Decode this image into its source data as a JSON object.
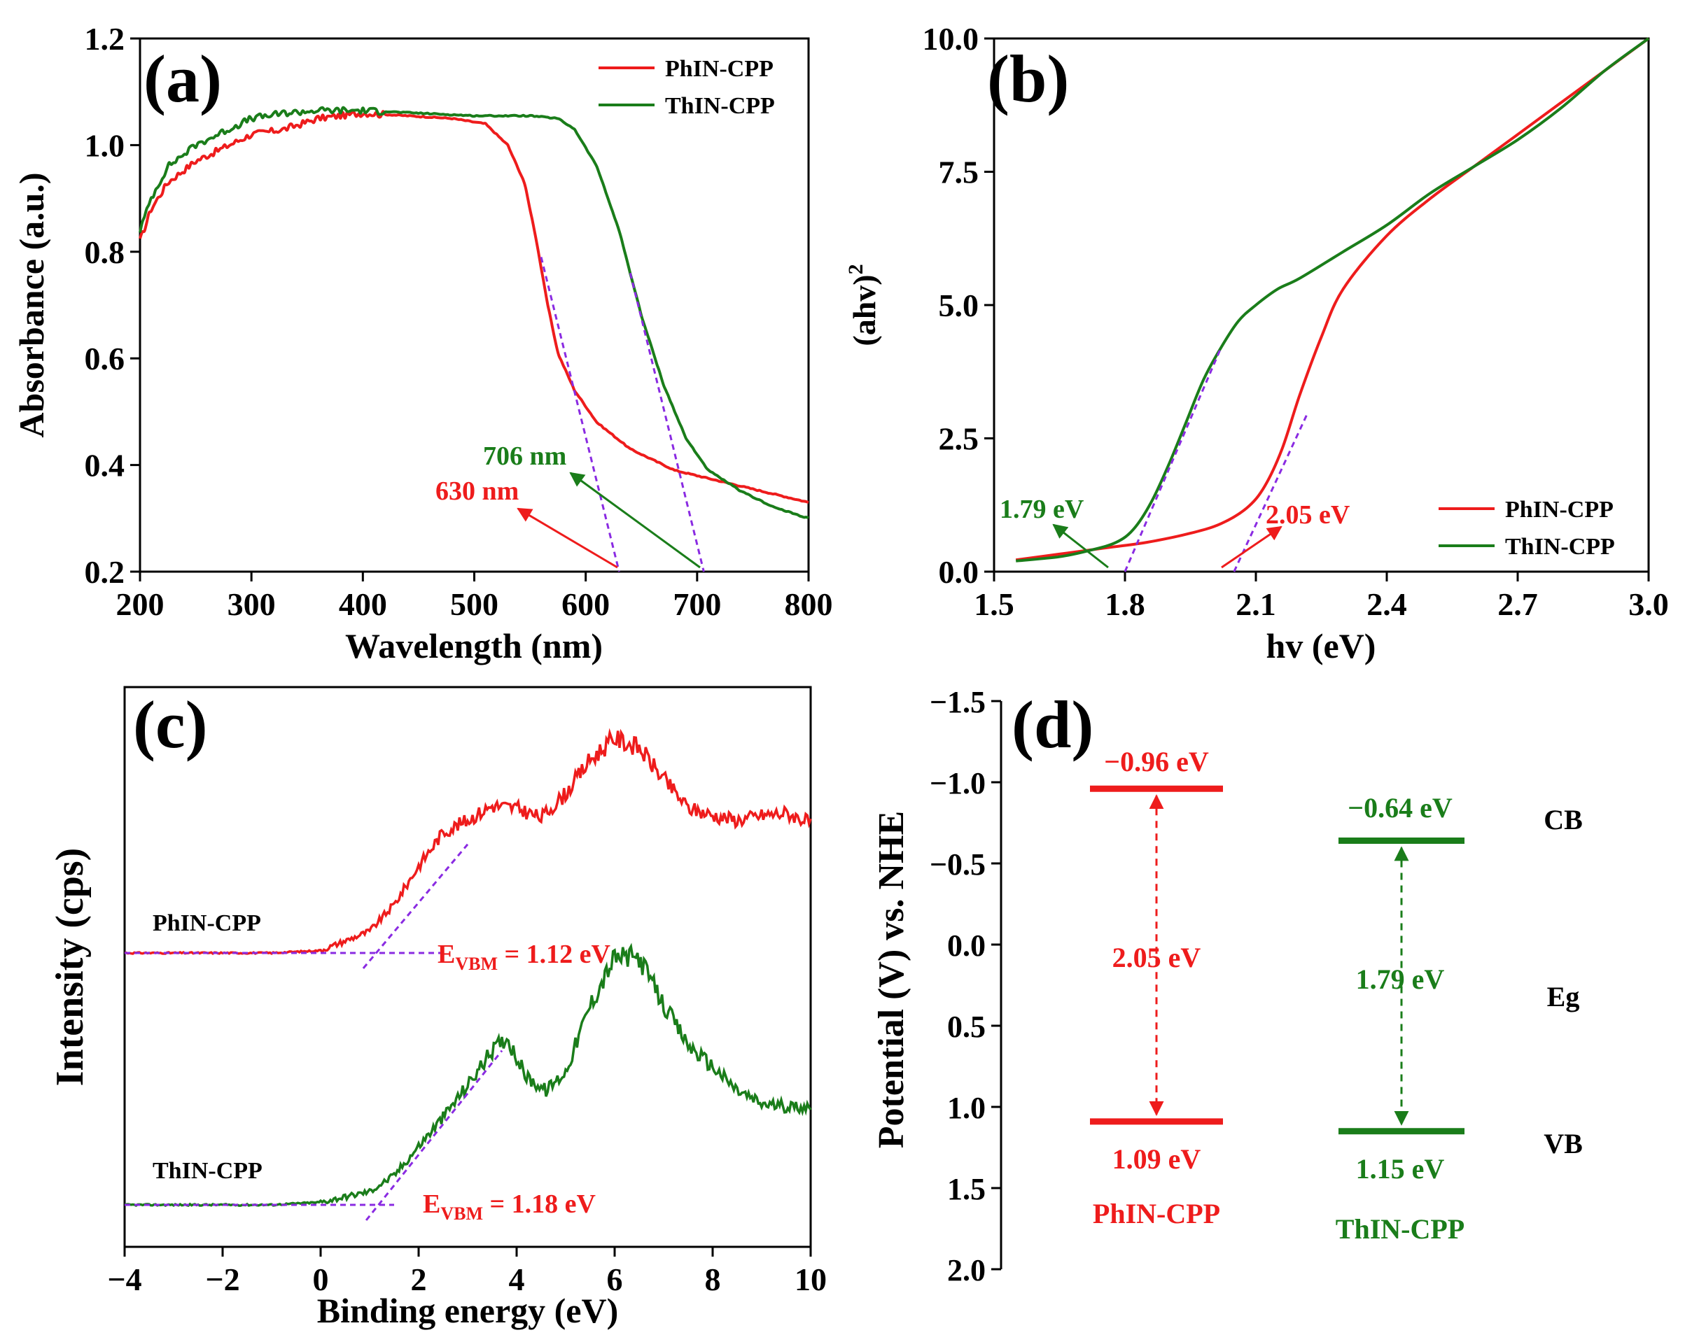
{
  "colors": {
    "phin": "#ee1c1c",
    "thin": "#1a7d1a",
    "fit": "#8a2be2",
    "axis": "#000000"
  },
  "panels": {
    "a": {
      "letter": "(a)",
      "xlabel": "Wavelength (nm)",
      "ylabel": "Absorbance (a.u.)",
      "xlim": [
        200,
        800
      ],
      "ylim": [
        0.2,
        1.2
      ],
      "xticks": [
        "200",
        "300",
        "400",
        "500",
        "600",
        "700",
        "800"
      ],
      "yticks": [
        "0.2",
        "0.4",
        "0.6",
        "0.8",
        "1.0",
        "1.2"
      ],
      "legend": [
        "PhIN-CPP",
        "ThIN-CPP"
      ],
      "annotations": {
        "phin": "630 nm",
        "thin": "706 nm"
      }
    },
    "b": {
      "letter": "(b)",
      "xlabel": "hv (eV)",
      "ylabel": "(ahv)",
      "ylabel_sup": "2",
      "xlim": [
        1.5,
        3.0
      ],
      "ylim": [
        0,
        10
      ],
      "xticks": [
        "1.5",
        "1.8",
        "2.1",
        "2.4",
        "2.7",
        "3.0"
      ],
      "yticks": [
        "0.0",
        "2.5",
        "5.0",
        "7.5",
        "10.0"
      ],
      "legend": [
        "PhIN-CPP",
        "ThIN-CPP"
      ],
      "annotations": {
        "phin": "2.05 eV",
        "thin": "1.79 eV"
      }
    },
    "c": {
      "letter": "(c)",
      "xlabel": "Binding energy (eV)",
      "ylabel": "Intensity (cps)",
      "xlim": [
        -4,
        10
      ],
      "xticks": [
        "−4",
        "−2",
        "0",
        "2",
        "4",
        "6",
        "8",
        "10"
      ],
      "labels": {
        "phin": "PhIN-CPP",
        "thin": "ThIN-CPP"
      },
      "evbm": {
        "prefix": "E",
        "sub": "VBM",
        "phin": " = 1.12 eV",
        "thin": " = 1.18 eV"
      }
    },
    "d": {
      "letter": "(d)",
      "ylabel": "Potential (V) vs. NHE",
      "yticks": [
        "−1.5",
        "−1.0",
        "−0.5",
        "0.0",
        "0.5",
        "1.0",
        "1.5",
        "2.0"
      ],
      "phin": {
        "cb": "−0.96 eV",
        "vb": "1.09 eV",
        "eg": "2.05 eV",
        "name": "PhIN-CPP"
      },
      "thin": {
        "cb": "−0.64 eV",
        "vb": "1.15 eV",
        "eg": "1.79 eV",
        "name": "ThIN-CPP"
      },
      "side_labels": {
        "cb": "CB",
        "eg": "Eg",
        "vb": "VB"
      }
    }
  },
  "chart_data": [
    {
      "type": "line",
      "title": "(a)",
      "xlabel": "Wavelength (nm)",
      "ylabel": "Absorbance (a.u.)",
      "xlim": [
        200,
        800
      ],
      "ylim": [
        0.2,
        1.2
      ],
      "series": [
        {
          "name": "PhIN-CPP",
          "x": [
            200,
            210,
            225,
            250,
            280,
            300,
            330,
            360,
            400,
            440,
            480,
            510,
            530,
            545,
            555,
            565,
            575,
            590,
            610,
            640,
            680,
            720,
            760,
            800
          ],
          "y": [
            0.82,
            0.88,
            0.93,
            0.97,
            1.0,
            1.02,
            1.03,
            1.05,
            1.06,
            1.055,
            1.05,
            1.04,
            1.0,
            0.93,
            0.83,
            0.71,
            0.61,
            0.54,
            0.48,
            0.43,
            0.39,
            0.37,
            0.35,
            0.33
          ]
        },
        {
          "name": "ThIN-CPP",
          "x": [
            200,
            210,
            225,
            250,
            280,
            300,
            330,
            360,
            400,
            450,
            500,
            550,
            575,
            590,
            610,
            630,
            650,
            670,
            690,
            710,
            740,
            770,
            800
          ],
          "y": [
            0.84,
            0.9,
            0.96,
            1.0,
            1.03,
            1.05,
            1.06,
            1.065,
            1.065,
            1.06,
            1.055,
            1.055,
            1.05,
            1.03,
            0.96,
            0.84,
            0.68,
            0.55,
            0.45,
            0.39,
            0.35,
            0.32,
            0.3
          ]
        }
      ],
      "tangents": [
        {
          "name": "PhIN-CPP",
          "x": [
            560,
            630
          ],
          "y": [
            0.79,
            0.2
          ],
          "intercept": 630
        },
        {
          "name": "ThIN-CPP",
          "x": [
            640,
            706
          ],
          "y": [
            0.76,
            0.2
          ],
          "intercept": 706
        }
      ]
    },
    {
      "type": "line",
      "title": "(b)",
      "xlabel": "hv (eV)",
      "ylabel": "(ahv)^2",
      "xlim": [
        1.5,
        3.0
      ],
      "ylim": [
        0,
        10
      ],
      "series": [
        {
          "name": "PhIN-CPP",
          "x": [
            1.55,
            1.65,
            1.75,
            1.85,
            1.95,
            2.02,
            2.08,
            2.12,
            2.16,
            2.2,
            2.25,
            2.3,
            2.4,
            2.5,
            2.6,
            2.7,
            2.8,
            2.9,
            3.0
          ],
          "y": [
            0.22,
            0.33,
            0.44,
            0.55,
            0.72,
            0.9,
            1.2,
            1.6,
            2.3,
            3.3,
            4.4,
            5.3,
            6.3,
            7.0,
            7.6,
            8.2,
            8.8,
            9.4,
            10.0
          ]
        },
        {
          "name": "ThIN-CPP",
          "x": [
            1.55,
            1.65,
            1.72,
            1.78,
            1.82,
            1.86,
            1.9,
            1.94,
            1.98,
            2.02,
            2.06,
            2.1,
            2.15,
            2.2,
            2.3,
            2.4,
            2.5,
            2.6,
            2.7,
            2.8,
            2.9,
            3.0
          ],
          "y": [
            0.2,
            0.28,
            0.4,
            0.55,
            0.8,
            1.3,
            2.0,
            2.8,
            3.6,
            4.2,
            4.7,
            5.0,
            5.3,
            5.5,
            6.0,
            6.5,
            7.1,
            7.6,
            8.1,
            8.7,
            9.4,
            10.0
          ]
        }
      ],
      "tangents": [
        {
          "name": "PhIN-CPP",
          "x": [
            2.05,
            2.22
          ],
          "y": [
            0,
            3.0
          ],
          "intercept": 2.05
        },
        {
          "name": "ThIN-CPP",
          "x": [
            1.8,
            2.02
          ],
          "y": [
            0,
            4.2
          ],
          "intercept": 1.79
        }
      ],
      "legend": "bottom-right"
    },
    {
      "type": "line",
      "title": "(c)",
      "xlabel": "Binding energy (eV)",
      "ylabel": "Intensity (cps)",
      "xlim": [
        -4,
        10
      ],
      "series": [
        {
          "name": "PhIN-CPP",
          "x": [
            -4,
            -2,
            -1,
            0,
            0.5,
            1,
            1.5,
            2,
            2.5,
            3,
            3.5,
            4,
            4.5,
            5,
            5.5,
            6,
            6.5,
            7,
            7.5,
            8,
            8.5,
            9,
            9.5,
            10
          ],
          "y": [
            0,
            0,
            0,
            0.01,
            0.05,
            0.09,
            0.2,
            0.36,
            0.5,
            0.55,
            0.61,
            0.6,
            0.56,
            0.66,
            0.8,
            0.89,
            0.85,
            0.72,
            0.6,
            0.57,
            0.55,
            0.57,
            0.58,
            0.54
          ]
        },
        {
          "name": "ThIN-CPP",
          "x": [
            -4,
            -2,
            -1,
            0,
            0.5,
            1,
            1.5,
            2,
            2.5,
            3,
            3.5,
            3.8,
            4.2,
            4.6,
            5,
            5.5,
            6,
            6.5,
            7,
            7.5,
            8,
            8.5,
            9,
            9.5,
            10
          ],
          "y": [
            0,
            0,
            0,
            0.01,
            0.03,
            0.05,
            0.11,
            0.22,
            0.33,
            0.45,
            0.58,
            0.63,
            0.48,
            0.43,
            0.5,
            0.75,
            0.93,
            0.93,
            0.75,
            0.6,
            0.52,
            0.43,
            0.38,
            0.37,
            0.37
          ]
        }
      ],
      "annotations": [
        "E_VBM = 1.12 eV",
        "E_VBM = 1.18 eV"
      ]
    },
    {
      "type": "bar",
      "title": "(d)",
      "ylabel": "Potential (V) vs. NHE",
      "ylim": [
        -1.5,
        2.0
      ],
      "categories": [
        "PhIN-CPP",
        "ThIN-CPP"
      ],
      "series": [
        {
          "name": "CB",
          "values": [
            -0.96,
            -0.64
          ]
        },
        {
          "name": "VB",
          "values": [
            1.09,
            1.15
          ]
        },
        {
          "name": "Eg",
          "values": [
            2.05,
            1.79
          ]
        }
      ]
    }
  ]
}
